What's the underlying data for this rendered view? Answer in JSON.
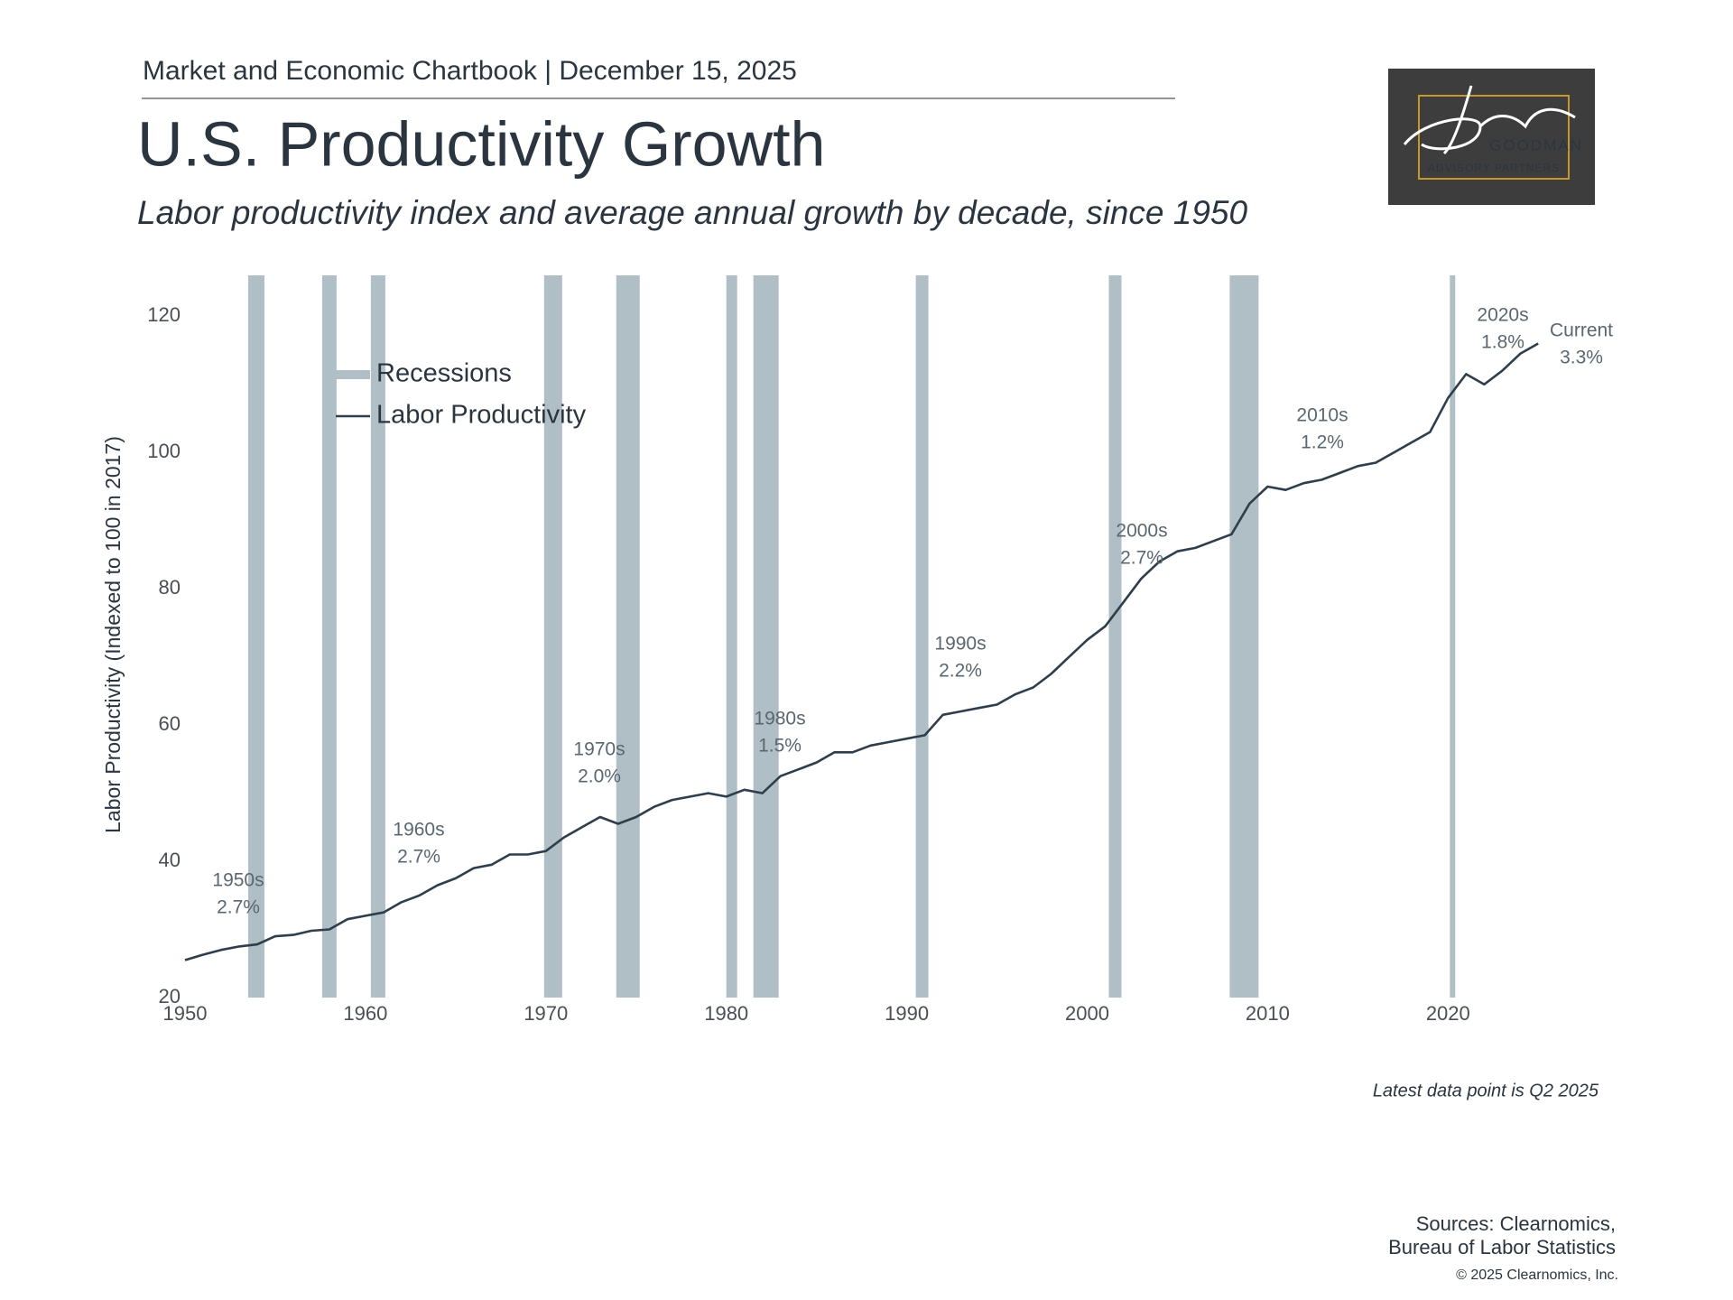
{
  "header": {
    "chartbook": "Market and Economic Chartbook | December 15, 2025"
  },
  "logo": {
    "name": "GOODMAN",
    "tagline": "ADVISORY PARTNERS"
  },
  "chart_data": {
    "type": "line",
    "title": "U.S. Productivity Growth",
    "subtitle": "Labor productivity index and average annual growth by decade, since 1950",
    "y_label": "Labor Productivity (Indexed to 100 in 2017)",
    "x": [
      1950,
      1951,
      1952,
      1953,
      1954,
      1955,
      1956,
      1957,
      1958,
      1959,
      1960,
      1961,
      1962,
      1963,
      1964,
      1965,
      1966,
      1967,
      1968,
      1969,
      1970,
      1971,
      1972,
      1973,
      1974,
      1975,
      1976,
      1977,
      1978,
      1979,
      1980,
      1981,
      1982,
      1983,
      1984,
      1985,
      1986,
      1987,
      1988,
      1989,
      1990,
      1991,
      1992,
      1993,
      1994,
      1995,
      1996,
      1997,
      1998,
      1999,
      2000,
      2001,
      2002,
      2003,
      2004,
      2005,
      2006,
      2007,
      2008,
      2009,
      2010,
      2011,
      2012,
      2013,
      2014,
      2015,
      2016,
      2017,
      2018,
      2019,
      2020,
      2021,
      2022,
      2023,
      2024,
      2025
    ],
    "series": [
      {
        "name": "Labor Productivity",
        "color": "#2f3e4c",
        "values": [
          25.5,
          26.3,
          27,
          27.5,
          27.8,
          29,
          29.2,
          29.8,
          30,
          31.5,
          32,
          32.5,
          34,
          35,
          36.5,
          37.5,
          39,
          39.5,
          41,
          41,
          41.5,
          43.5,
          45,
          46.5,
          45.5,
          46.5,
          48,
          49,
          49.5,
          50,
          49.5,
          50.5,
          50,
          52.5,
          53.5,
          54.5,
          56,
          56,
          57,
          57.5,
          58,
          58.5,
          61.5,
          62,
          62.5,
          63,
          64.5,
          65.5,
          67.5,
          70,
          72.5,
          74.5,
          78,
          81.5,
          84,
          85.5,
          86,
          87,
          88,
          92.5,
          95,
          94.5,
          95.5,
          96,
          97,
          98,
          98.5,
          100,
          101.5,
          103,
          108,
          111.5,
          110,
          112,
          114.5,
          116
        ]
      }
    ],
    "recessions": {
      "name": "Recessions",
      "color": "#b0bec5",
      "periods": [
        [
          1953.5,
          1954.4
        ],
        [
          1957.6,
          1958.4
        ],
        [
          1960.3,
          1961.1
        ],
        [
          1969.9,
          1970.9
        ],
        [
          1973.9,
          1975.2
        ],
        [
          1980,
          1980.6
        ],
        [
          1981.5,
          1982.9
        ],
        [
          1990.5,
          1991.2
        ],
        [
          2001.2,
          2001.9
        ],
        [
          2007.9,
          2009.5
        ],
        [
          2020.1,
          2020.4
        ]
      ]
    },
    "annotations": [
      {
        "label": "1950s",
        "growth": "2.7%"
      },
      {
        "label": "1960s",
        "growth": "2.7%"
      },
      {
        "label": "1970s",
        "growth": "2.0%"
      },
      {
        "label": "1980s",
        "growth": "1.5%"
      },
      {
        "label": "1990s",
        "growth": "2.2%"
      },
      {
        "label": "2000s",
        "growth": "2.7%"
      },
      {
        "label": "2010s",
        "growth": "1.2%"
      },
      {
        "label": "2020s",
        "growth": "1.8%"
      },
      {
        "label": "Current",
        "growth": "3.3%"
      }
    ],
    "xlim": [
      1950,
      2026
    ],
    "ylim": [
      20,
      126
    ],
    "xticks": [
      1950,
      1960,
      1970,
      1980,
      1990,
      2000,
      2010,
      2020
    ],
    "yticks": [
      20,
      40,
      60,
      80,
      100,
      120
    ],
    "legend": "upper left",
    "footnote": "Latest data point is Q2 2025"
  },
  "footer": {
    "sources": [
      "Sources: Clearnomics,",
      "Bureau of Labor Statistics"
    ],
    "copyright": "© 2025 Clearnomics, Inc."
  }
}
